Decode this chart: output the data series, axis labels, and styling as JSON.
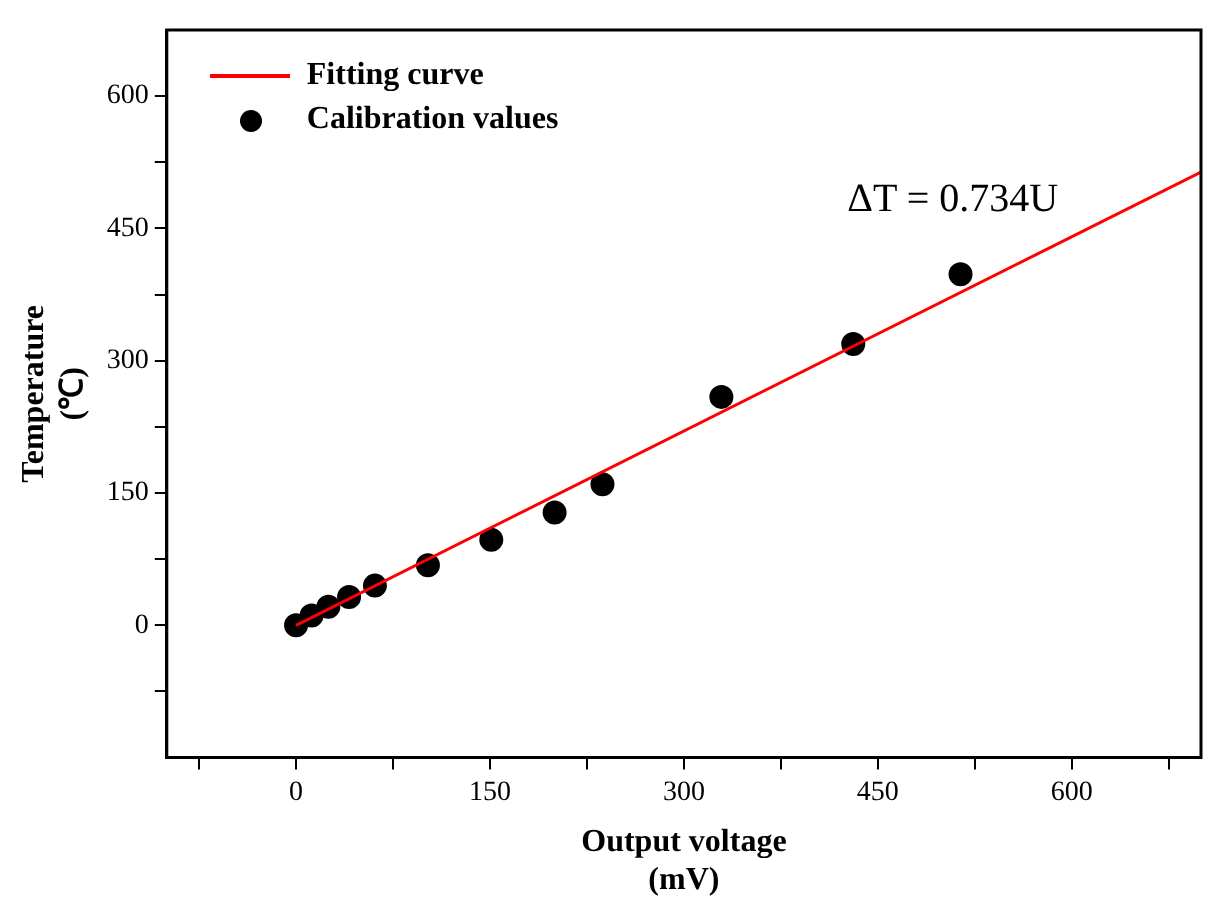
{
  "chart_data": {
    "type": "scatter",
    "xlabel": "Output voltage\n(mV)",
    "ylabel": "Temperature\n(℃)",
    "xlim": [
      -100,
      700
    ],
    "ylim": [
      -150,
      675
    ],
    "xticks": [
      {
        "value": -75,
        "label": null
      },
      0,
      {
        "value": 75,
        "label": null
      },
      150,
      {
        "value": 225,
        "label": null
      },
      300,
      {
        "value": 375,
        "label": null
      },
      450,
      {
        "value": 525,
        "label": null
      },
      600,
      {
        "value": 675,
        "label": null
      }
    ],
    "yticks": [
      {
        "value": -75,
        "label": null
      },
      0,
      {
        "value": 75,
        "label": null
      },
      150,
      {
        "value": 225,
        "label": null
      },
      300,
      {
        "value": 375,
        "label": null
      },
      450,
      {
        "value": 525,
        "label": null
      },
      600
    ],
    "grid": false,
    "legend": "top left",
    "series": [
      {
        "name": "Fitting curve",
        "type": "line",
        "color": "#ff0000",
        "marker": "none",
        "x": [
          0,
          700
        ],
        "values": [
          0,
          514
        ]
      },
      {
        "name": "Calibration values",
        "color": "#000000",
        "marker": "circle",
        "x": [
          0,
          12,
          25,
          41,
          61,
          102,
          151,
          200,
          237,
          329,
          431,
          514
        ],
        "values": [
          0,
          11,
          21,
          32,
          45,
          68,
          97,
          128,
          160,
          259,
          319,
          398
        ]
      }
    ],
    "annotations": [
      "ΔT = 0.734U"
    ]
  }
}
